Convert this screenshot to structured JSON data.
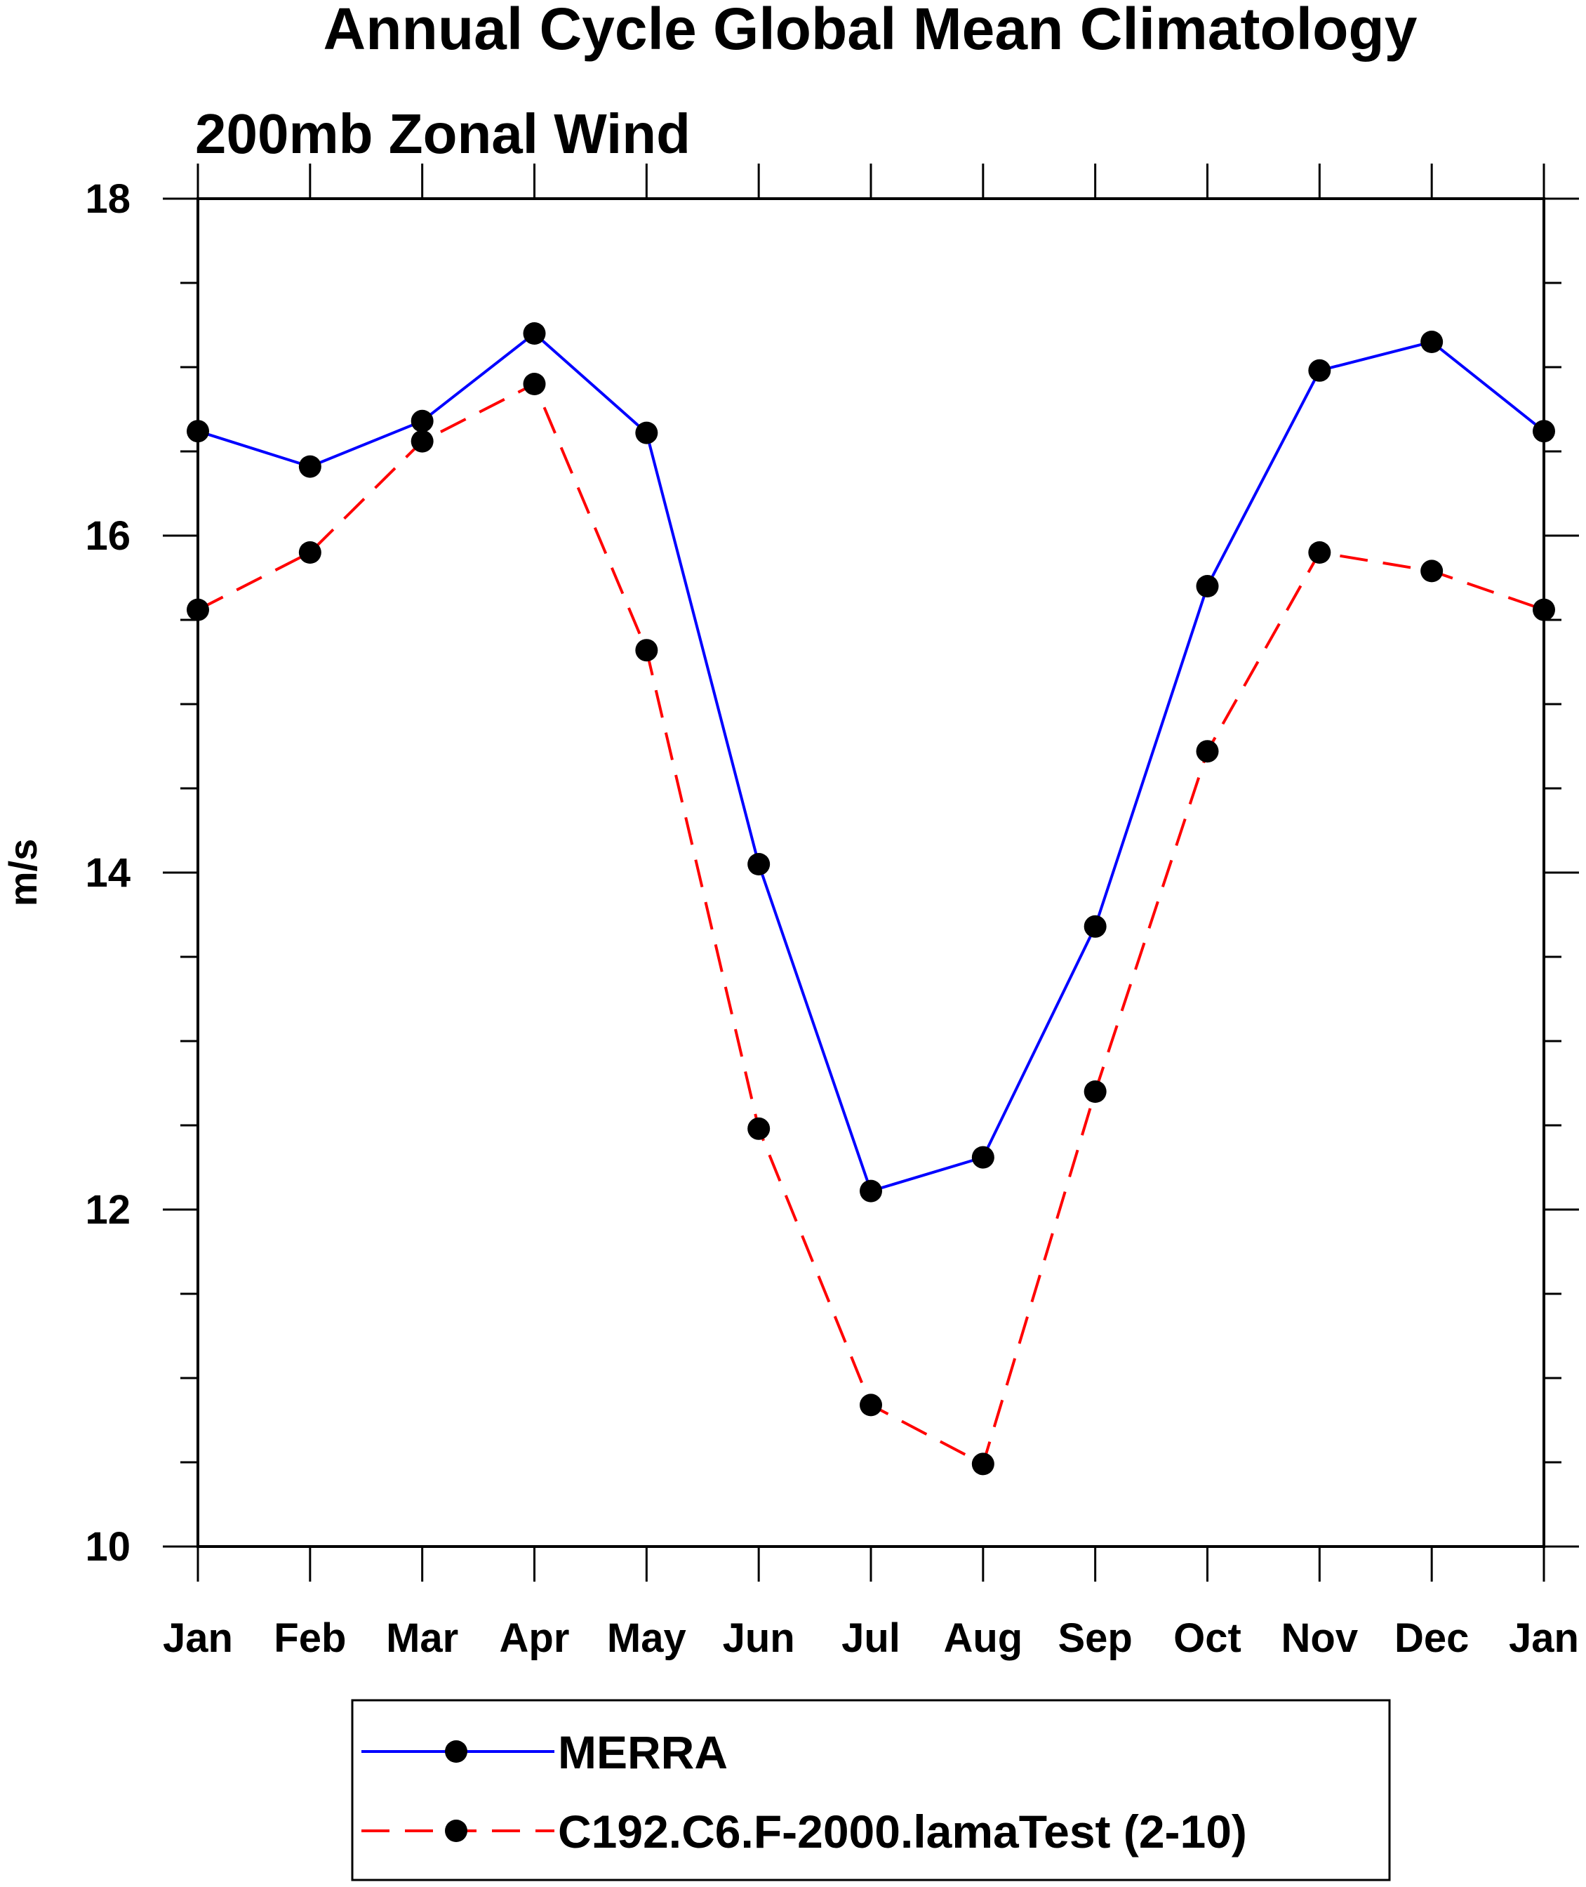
{
  "chart_data": {
    "type": "line",
    "title": "Annual Cycle Global Mean Climatology",
    "subtitle": "200mb Zonal Wind",
    "ylabel": "m/s",
    "xlabel": "",
    "categories": [
      "Jan",
      "Feb",
      "Mar",
      "Apr",
      "May",
      "Jun",
      "Jul",
      "Aug",
      "Sep",
      "Oct",
      "Nov",
      "Dec",
      "Jan"
    ],
    "ylim": [
      10,
      18
    ],
    "yticks": [
      10,
      12,
      14,
      16,
      18
    ],
    "y_minor_step": 0.5,
    "grid": false,
    "legend_position": "bottom",
    "series": [
      {
        "name": "MERRA",
        "color": "#0000ff",
        "line_style": "solid",
        "marker": "filled-circle",
        "values": [
          16.62,
          16.41,
          16.68,
          17.2,
          16.61,
          14.05,
          12.11,
          12.31,
          13.68,
          15.7,
          16.98,
          17.15,
          16.62
        ]
      },
      {
        "name": "C192.C6.F-2000.lamaTest (2-10)",
        "color": "#ff0000",
        "line_style": "dashed",
        "marker": "filled-circle",
        "values": [
          15.56,
          15.9,
          16.56,
          16.9,
          15.32,
          12.48,
          10.84,
          10.49,
          12.7,
          14.72,
          15.9,
          15.79,
          15.56
        ]
      }
    ]
  }
}
